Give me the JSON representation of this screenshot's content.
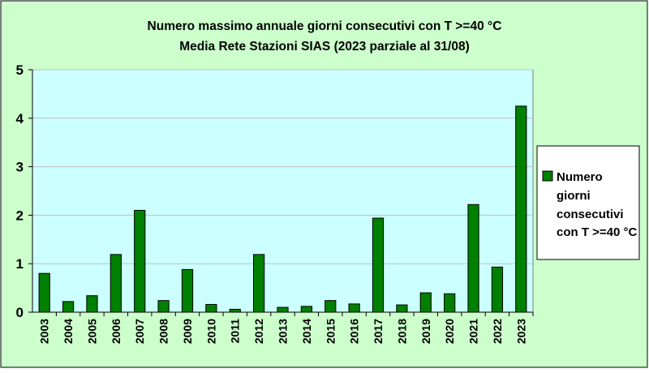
{
  "chart_data": {
    "type": "bar",
    "title": [
      "Numero massimo annuale giorni consecutivi con T >=40 °C",
      "Media Rete Stazioni SIAS (2023 parziale al 31/08)"
    ],
    "xlabel": "",
    "ylabel": "",
    "ylim": [
      0,
      5
    ],
    "yticks": [
      "0",
      "1",
      "2",
      "3",
      "4",
      "5"
    ],
    "grid": true,
    "legend_position": "right",
    "categories": [
      "2003",
      "2004",
      "2005",
      "2006",
      "2007",
      "2008",
      "2009",
      "2010",
      "2011",
      "2012",
      "2013",
      "2014",
      "2015",
      "2016",
      "2017",
      "2018",
      "2019",
      "2020",
      "2021",
      "2022",
      "2023"
    ],
    "series": [
      {
        "name": "Numero giorni consecutivi con T >=40 °C",
        "legend_lines": [
          "Numero",
          "giorni",
          "consecutivi",
          "con T >=40 °C"
        ],
        "values": [
          0.8,
          0.22,
          0.34,
          1.19,
          2.1,
          0.24,
          0.88,
          0.16,
          0.06,
          1.19,
          0.1,
          0.12,
          0.24,
          0.17,
          1.94,
          0.15,
          0.4,
          0.38,
          2.22,
          0.93,
          4.25
        ]
      }
    ]
  },
  "colors": {
    "outer_background": "#ccffcc",
    "plot_background": "#ccffff",
    "bar_fill": "#008000",
    "bar_stroke": "#000000",
    "text": "#000000"
  }
}
